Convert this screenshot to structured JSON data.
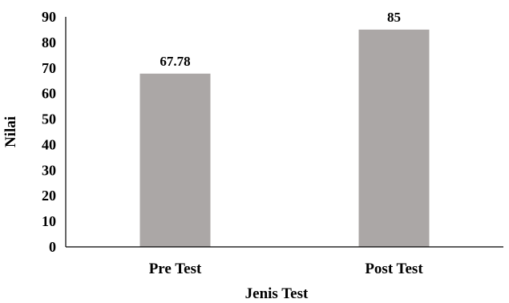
{
  "chart_data": {
    "type": "bar",
    "title": "",
    "xlabel": "Jenis Test",
    "ylabel": "Nilai",
    "categories": [
      "Pre Test",
      "Post Test"
    ],
    "values": [
      67.78,
      85
    ],
    "data_labels": [
      "67.78",
      "85"
    ],
    "ylim": [
      0,
      90
    ],
    "yticks": [
      0,
      10,
      20,
      30,
      40,
      50,
      60,
      70,
      80,
      90
    ],
    "ytick_labels": [
      "0",
      "10",
      "20",
      "30",
      "40",
      "50",
      "60",
      "70",
      "80",
      "90"
    ],
    "grid": false,
    "legend": "none",
    "bar_color": "#aba7a6",
    "axis_color": "#000000"
  }
}
